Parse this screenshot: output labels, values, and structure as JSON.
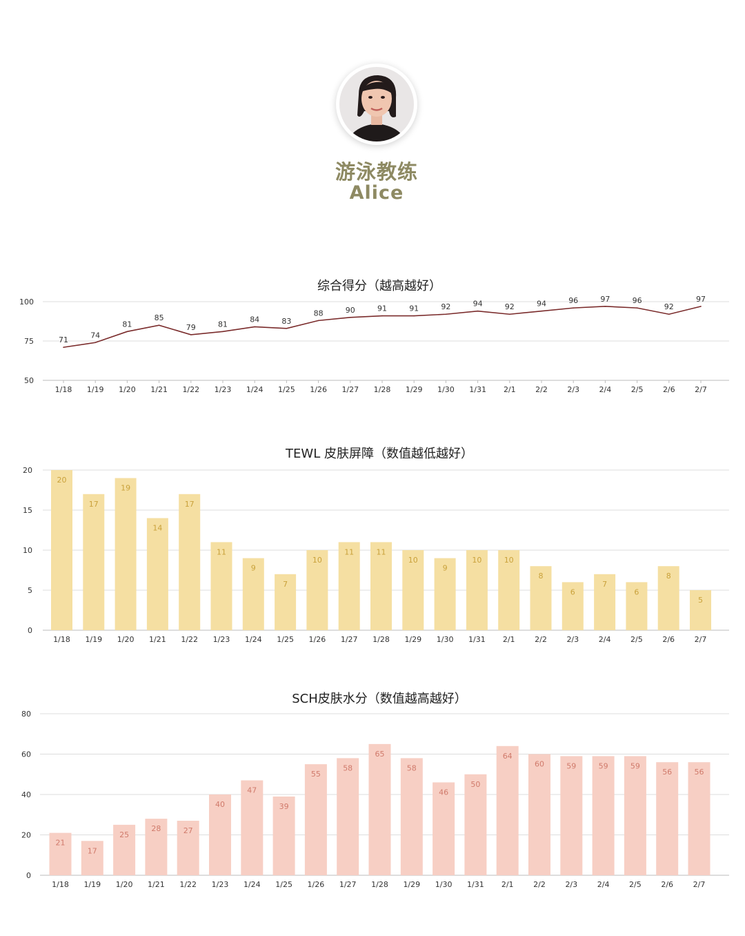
{
  "profile": {
    "role": "游泳教练",
    "name": "Alice",
    "avatar_icon": "portrait-photo"
  },
  "colors": {
    "line": "#7a2b2b",
    "tewl_bar": "#f5dfa2",
    "tewl_label": "#c9a13a",
    "sch_bar": "#f7cfc4",
    "sch_label": "#d07a6b",
    "grid": "#dddddd",
    "title_accent": "#8e8a63"
  },
  "chart_data": [
    {
      "id": "score",
      "type": "line",
      "title": "综合得分（越高越好）",
      "categories": [
        "1/18",
        "1/19",
        "1/20",
        "1/21",
        "1/22",
        "1/23",
        "1/24",
        "1/25",
        "1/26",
        "1/27",
        "1/28",
        "1/29",
        "1/30",
        "1/31",
        "2/1",
        "2/2",
        "2/3",
        "2/4",
        "2/5",
        "2/6",
        "2/7"
      ],
      "values": [
        71,
        74,
        81,
        85,
        79,
        81,
        84,
        83,
        88,
        90,
        91,
        91,
        92,
        94,
        92,
        94,
        96,
        97,
        96,
        92,
        97
      ],
      "ylim": [
        50,
        100
      ],
      "yticks": [
        50,
        75,
        100
      ],
      "grid": true
    },
    {
      "id": "tewl",
      "type": "bar",
      "title": "TEWL 皮肤屏障（数值越低越好）",
      "categories": [
        "1/18",
        "1/19",
        "1/20",
        "1/21",
        "1/22",
        "1/23",
        "1/24",
        "1/25",
        "1/26",
        "1/27",
        "1/28",
        "1/29",
        "1/30",
        "1/31",
        "2/1",
        "2/2",
        "2/3",
        "2/4",
        "2/5",
        "2/6",
        "2/7"
      ],
      "values": [
        20,
        17,
        19,
        14,
        17,
        11,
        9,
        7,
        10,
        11,
        11,
        10,
        9,
        10,
        10,
        8,
        6,
        7,
        6,
        8,
        5
      ],
      "ylim": [
        0,
        20
      ],
      "yticks": [
        0,
        5,
        10,
        15,
        20
      ],
      "grid": true
    },
    {
      "id": "sch",
      "type": "bar",
      "title": "SCH皮肤水分（数值越高越好）",
      "categories": [
        "1/18",
        "1/19",
        "1/20",
        "1/21",
        "1/22",
        "1/23",
        "1/24",
        "1/25",
        "1/26",
        "1/27",
        "1/28",
        "1/29",
        "1/30",
        "1/31",
        "2/1",
        "2/2",
        "2/3",
        "2/4",
        "2/5",
        "2/6",
        "2/7"
      ],
      "values": [
        21,
        17,
        25,
        28,
        27,
        40,
        47,
        39,
        55,
        58,
        65,
        58,
        46,
        50,
        64,
        60,
        59,
        59,
        59,
        56,
        56
      ],
      "ylim": [
        0,
        80
      ],
      "yticks": [
        0,
        20,
        40,
        60,
        80
      ],
      "grid": true
    }
  ]
}
